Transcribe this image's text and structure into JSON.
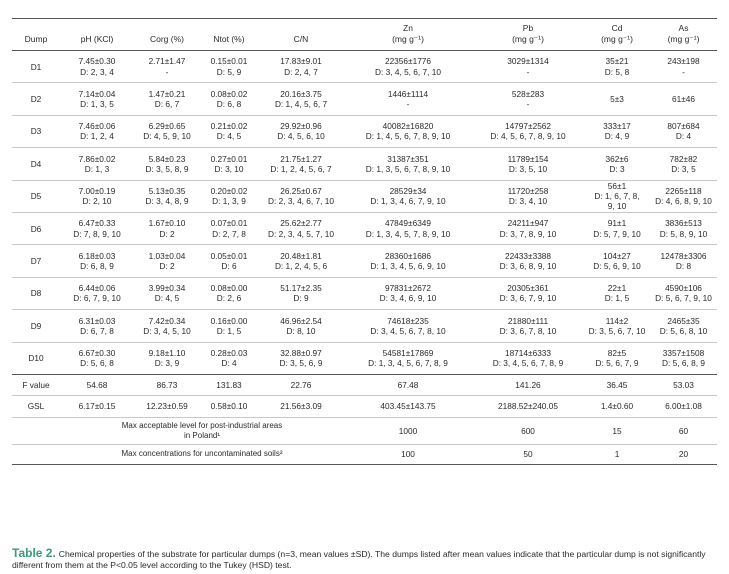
{
  "headers": {
    "dump": "Dump",
    "ph": "pH (KCl)",
    "corg": "Corg (%)",
    "ntot": "Ntot (%)",
    "cn": "C/N",
    "zn_1": "Zn",
    "zn_2": "(mg g⁻¹)",
    "pb_1": "Pb",
    "pb_2": "(mg g⁻¹)",
    "cd_1": "Cd",
    "cd_2": "(mg g⁻¹)",
    "as_1": "As",
    "as_2": "(mg g⁻¹)"
  },
  "rows": [
    {
      "dump": "D1",
      "ph": [
        "7.45±0.30",
        "D: 2, 3, 4"
      ],
      "corg": [
        "2.71±1.47",
        "-"
      ],
      "ntot": [
        "0.15±0.01",
        "D: 5, 9"
      ],
      "cn": [
        "17.83±9.01",
        "D: 2, 4, 7"
      ],
      "zn": [
        "22356±1776",
        "D: 3, 4, 5, 6, 7, 10"
      ],
      "pb": [
        "3029±1314",
        "-"
      ],
      "cd": [
        "35±21",
        "D: 5, 8"
      ],
      "as": [
        "243±198",
        "-"
      ]
    },
    {
      "dump": "D2",
      "ph": [
        "7.14±0.04",
        "D: 1, 3, 5"
      ],
      "corg": [
        "1.47±0.21",
        "D: 6, 7"
      ],
      "ntot": [
        "0.08±0.02",
        "D: 6, 8"
      ],
      "cn": [
        "20.16±3.75",
        "D: 1, 4, 5, 6, 7"
      ],
      "zn": [
        "1446±1114",
        "-"
      ],
      "pb": [
        "528±283",
        "-"
      ],
      "cd": [
        "5±3",
        ""
      ],
      "as": [
        "61±46",
        ""
      ]
    },
    {
      "dump": "D3",
      "ph": [
        "7.46±0.06",
        "D: 1, 2, 4"
      ],
      "corg": [
        "6.29±0.65",
        "D: 4, 5, 9, 10"
      ],
      "ntot": [
        "0.21±0.02",
        "D: 4, 5"
      ],
      "cn": [
        "29.92±0.96",
        "D: 4, 5, 6, 10"
      ],
      "zn": [
        "40082±16820",
        "D: 1, 4, 5, 6, 7, 8, 9, 10"
      ],
      "pb": [
        "14797±2562",
        "D: 4, 5, 6, 7, 8, 9, 10"
      ],
      "cd": [
        "333±17",
        "D: 4, 9"
      ],
      "as": [
        "807±684",
        "D: 4"
      ]
    },
    {
      "dump": "D4",
      "ph": [
        "7.86±0.02",
        "D: 1, 3"
      ],
      "corg": [
        "5.84±0.23",
        "D: 3, 5, 8, 9"
      ],
      "ntot": [
        "0.27±0.01",
        "D: 3, 10"
      ],
      "cn": [
        "21.75±1.27",
        "D: 1, 2, 4, 5, 6, 7"
      ],
      "zn": [
        "31387±351",
        "D: 1, 3, 5, 6, 7, 8, 9, 10"
      ],
      "pb": [
        "11789±154",
        "D: 3, 5, 10"
      ],
      "cd": [
        "362±6",
        "D: 3"
      ],
      "as": [
        "782±82",
        "D: 3, 5"
      ]
    },
    {
      "dump": "D5",
      "ph": [
        "7.00±0.19",
        "D: 2, 10"
      ],
      "corg": [
        "5.13±0.35",
        "D: 3, 4, 8, 9"
      ],
      "ntot": [
        "0.20±0.02",
        "D: 1, 3, 9"
      ],
      "cn": [
        "26.25±0.67",
        "D: 2, 3, 4, 6, 7, 10"
      ],
      "zn": [
        "28529±34",
        "D: 1, 3, 4, 6, 7, 9, 10"
      ],
      "pb": [
        "11720±258",
        "D: 3, 4, 10"
      ],
      "cd": [
        "56±1",
        "D: 1, 6, 7, 8,",
        "9, 10"
      ],
      "as": [
        "2265±118",
        "D: 4, 6, 8, 9, 10"
      ]
    },
    {
      "dump": "D6",
      "ph": [
        "6.47±0.33",
        "D: 7, 8, 9, 10"
      ],
      "corg": [
        "1.67±0.10",
        "D: 2"
      ],
      "ntot": [
        "0.07±0.01",
        "D: 2, 7, 8"
      ],
      "cn": [
        "25.62±2.77",
        "D: 2, 3, 4, 5, 7, 10"
      ],
      "zn": [
        "47849±6349",
        "D: 1, 3, 4, 5, 7, 8, 9, 10"
      ],
      "pb": [
        "24211±947",
        "D: 3, 7, 8, 9, 10"
      ],
      "cd": [
        "91±1",
        "D: 5, 7, 9, 10"
      ],
      "as": [
        "3836±513",
        "D: 5, 8, 9, 10"
      ]
    },
    {
      "dump": "D7",
      "ph": [
        "6.18±0.03",
        "D: 6, 8, 9"
      ],
      "corg": [
        "1.03±0.04",
        "D: 2"
      ],
      "ntot": [
        "0.05±0.01",
        "D: 6"
      ],
      "cn": [
        "20.48±1.81",
        "D: 1, 2, 4, 5, 6"
      ],
      "zn": [
        "28360±1686",
        "D: 1, 3, 4, 5, 6, 9, 10"
      ],
      "pb": [
        "22433±3388",
        "D: 3, 6, 8, 9, 10"
      ],
      "cd": [
        "104±27",
        "D: 5, 6, 9, 10"
      ],
      "as": [
        "12478±3306",
        "D: 8"
      ]
    },
    {
      "dump": "D8",
      "ph": [
        "6.44±0.06",
        "D: 6, 7, 9, 10"
      ],
      "corg": [
        "3.99±0.34",
        "D: 4, 5"
      ],
      "ntot": [
        "0.08±0.00",
        "D: 2, 6"
      ],
      "cn": [
        "51.17±2.35",
        "D: 9"
      ],
      "zn": [
        "97831±2672",
        "D: 3, 4, 6, 9, 10"
      ],
      "pb": [
        "20305±361",
        "D: 3, 6, 7, 9, 10"
      ],
      "cd": [
        "22±1",
        "D: 1, 5"
      ],
      "as": [
        "4590±106",
        "D: 5, 6, 7, 9, 10"
      ]
    },
    {
      "dump": "D9",
      "ph": [
        "6.31±0.03",
        "D: 6, 7, 8"
      ],
      "corg": [
        "7.42±0.34",
        "D: 3, 4, 5, 10"
      ],
      "ntot": [
        "0.16±0.00",
        "D: 1, 5"
      ],
      "cn": [
        "46.96±2.54",
        "D: 8, 10"
      ],
      "zn": [
        "74618±235",
        "D: 3, 4, 5, 6, 7, 8, 10"
      ],
      "pb": [
        "21880±111",
        "D: 3, 6, 7, 8, 10"
      ],
      "cd": [
        "114±2",
        "D: 3, 5, 6, 7, 10"
      ],
      "as": [
        "2465±35",
        "D: 5, 6, 8, 10"
      ]
    },
    {
      "dump": "D10",
      "ph": [
        "6.67±0.30",
        "D: 5, 6, 8"
      ],
      "corg": [
        "9.18±1.10",
        "D: 3, 9"
      ],
      "ntot": [
        "0.28±0.03",
        "D: 4"
      ],
      "cn": [
        "32.88±0.97",
        "D: 3, 5, 6, 9"
      ],
      "zn": [
        "54581±17869",
        "D: 1, 3, 4, 5, 6, 7, 8, 9"
      ],
      "pb": [
        "18714±6333",
        "D: 3, 4, 5, 6, 7, 8, 9"
      ],
      "cd": [
        "82±5",
        "D: 5, 6, 7, 9"
      ],
      "as": [
        "3357±1508",
        "D: 5, 6, 8, 9"
      ]
    }
  ],
  "fvalue": {
    "label": "F value",
    "ph": "54.68",
    "corg": "86.73",
    "ntot": "131.83",
    "cn": "22.76",
    "zn": "67.48",
    "pb": "141.26",
    "cd": "36.45",
    "as": "53.03"
  },
  "gsl": {
    "label": "GSL",
    "ph": "6.17±0.15",
    "corg": "12.23±0.59",
    "ntot": "0.58±0.10",
    "cn": "21.56±3.09",
    "zn": "403.45±143.75",
    "pb": "2188.52±240.05",
    "cd": "1.4±0.60",
    "as": "6.00±1.08"
  },
  "max_accept": {
    "label_1": "Max acceptable level for post-industrial areas",
    "label_2": "in Poland¹",
    "zn": "1000",
    "pb": "600",
    "cd": "15",
    "as": "60"
  },
  "max_uncont": {
    "label": "Max concentrations for uncontaminated soils²",
    "zn": "100",
    "pb": "50",
    "cd": "1",
    "as": "20"
  },
  "caption": {
    "label": "Table 2.",
    "text": "Chemical properties of the substrate for particular dumps (n=3, mean values ±SD). The dumps listed after mean values indicate that the particular dump is not significantly different from them at the P<0.05 level according to the Tukey (HSD) test."
  }
}
